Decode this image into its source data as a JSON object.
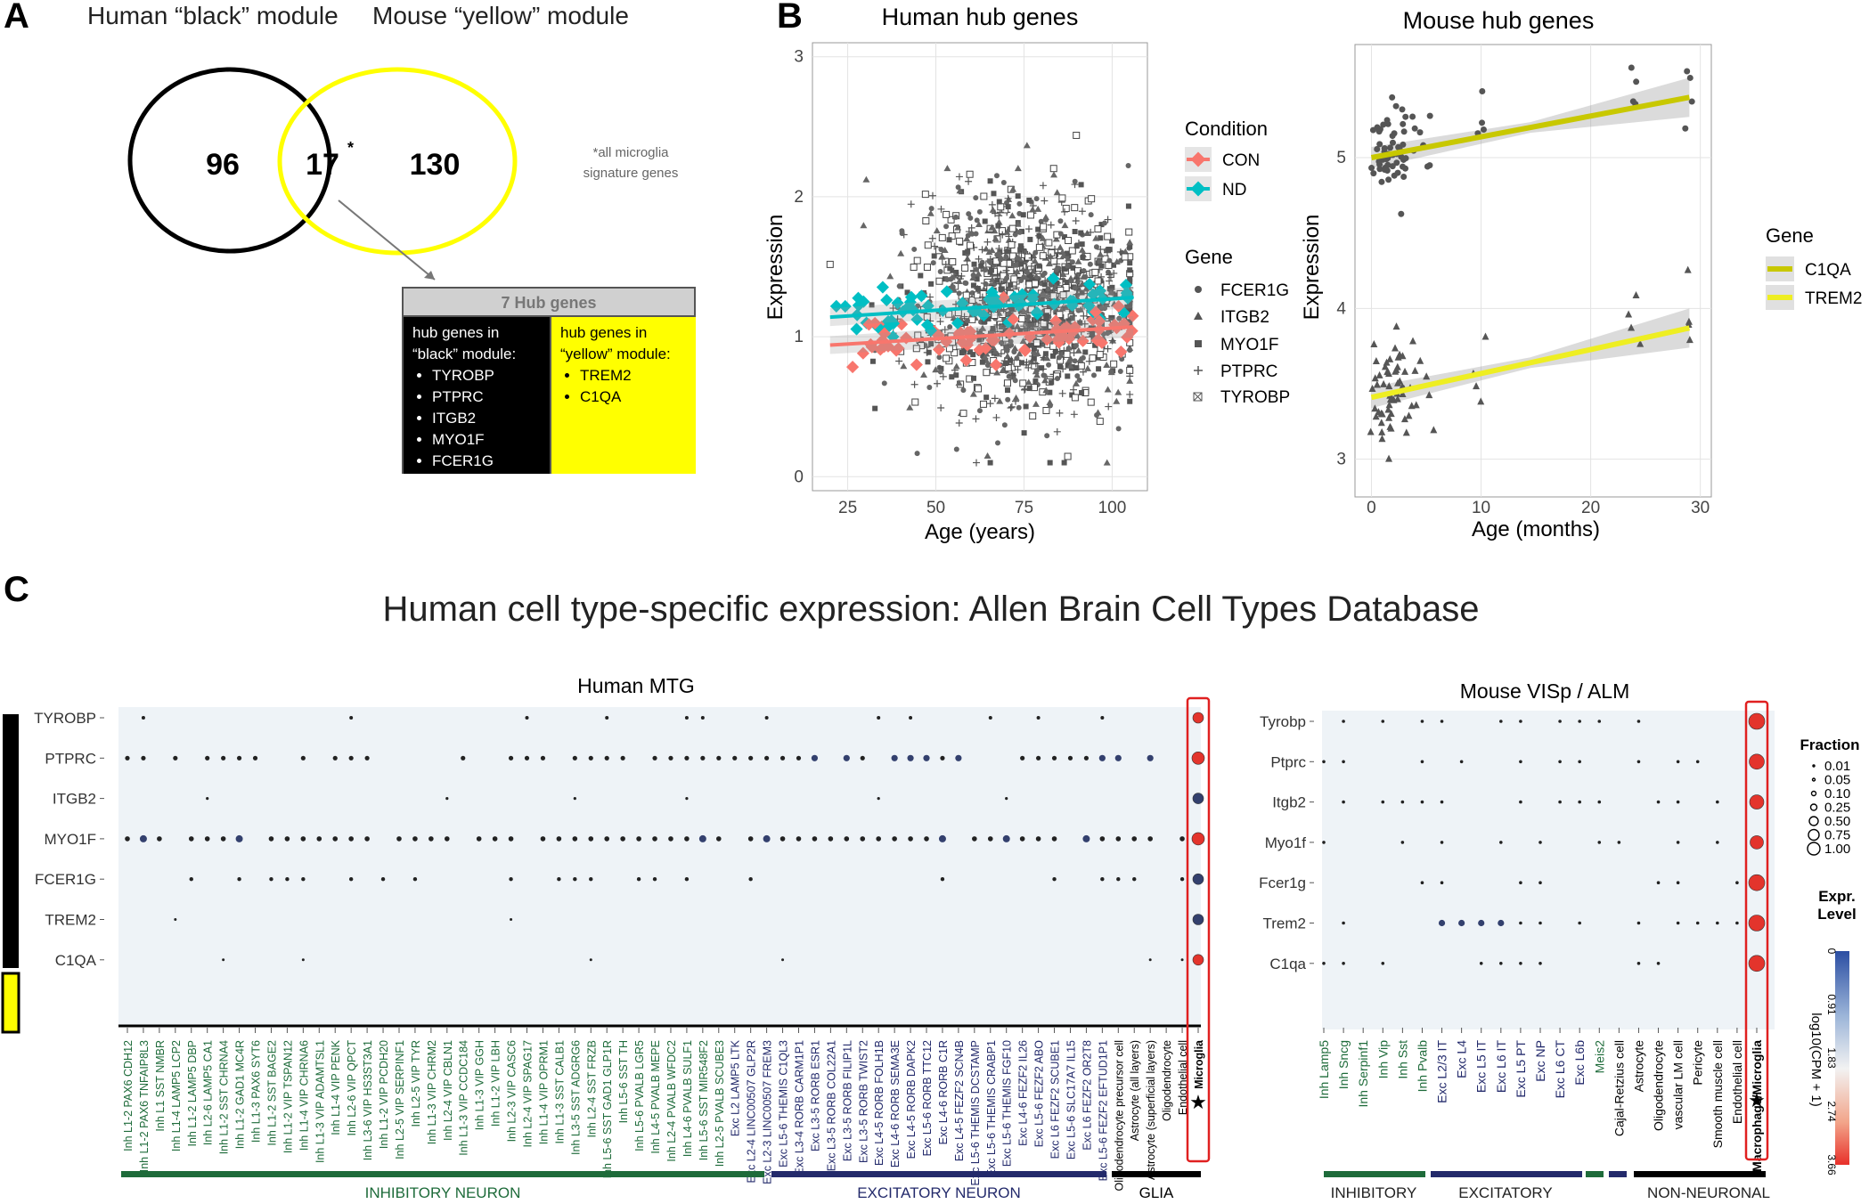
{
  "panel_labels": {
    "a": "A",
    "b": "B",
    "c": "C"
  },
  "venn": {
    "left_title": "Human “black” module",
    "right_title": "Mouse “yellow” module",
    "left_count": "96",
    "overlap_count": "17",
    "overlap_mark": "*",
    "right_count": "130",
    "footnote_line1": "*all microglia",
    "footnote_line2": "signature genes",
    "colors": {
      "left": "#000000",
      "right": "#ffff00"
    }
  },
  "hub_box": {
    "title": "7 Hub genes",
    "black_header_line1": "hub genes in",
    "black_header_line2": "“black” module:",
    "black_genes": [
      "TYROBP",
      "PTPRC",
      "ITGB2",
      "MYO1F",
      "FCER1G"
    ],
    "yellow_header_line1": "hub genes in",
    "yellow_header_line2": "“yellow” module:",
    "yellow_genes": [
      "TREM2",
      "C1QA"
    ]
  },
  "chart_data": [
    {
      "id": "human_hub",
      "type": "scatter",
      "title": "Human hub genes",
      "xlabel": "Age (years)",
      "ylabel": "Expression",
      "xlim": [
        15,
        110
      ],
      "ylim": [
        -0.1,
        3.1
      ],
      "xticks": [
        25,
        50,
        75,
        100
      ],
      "yticks": [
        0,
        1,
        2,
        3
      ],
      "legend_condition": {
        "title": "Condition",
        "items": [
          {
            "name": "CON",
            "color": "#f8766d"
          },
          {
            "name": "ND",
            "color": "#00bfc4"
          }
        ]
      },
      "legend_gene": {
        "title": "Gene",
        "items": [
          "FCER1G",
          "ITGB2",
          "MYO1F",
          "PTPRC",
          "TYROBP"
        ]
      },
      "trend_lines": [
        {
          "name": "CON",
          "x": [
            20,
            106
          ],
          "y": [
            0.94,
            1.07
          ],
          "color": "#f8766d"
        },
        {
          "name": "ND",
          "x": [
            20,
            106
          ],
          "y": [
            1.14,
            1.28
          ],
          "color": "#00bfc4"
        }
      ],
      "points_summary": "dense scatter of ~2000 points, Expression 0.1–2.6, Age 18–105"
    },
    {
      "id": "mouse_hub",
      "type": "scatter",
      "title": "Mouse hub genes",
      "xlabel": "Age (months)",
      "ylabel": "Expression",
      "xlim": [
        -1.5,
        31
      ],
      "ylim": [
        2.75,
        5.75
      ],
      "xticks": [
        0,
        10,
        20,
        30
      ],
      "yticks": [
        3,
        4,
        5
      ],
      "legend_gene": {
        "title": "Gene",
        "items": [
          {
            "name": "C1QA",
            "color": "#c8c800"
          },
          {
            "name": "TREM2",
            "color": "#eeee22"
          }
        ]
      },
      "trend_lines": [
        {
          "name": "C1QA",
          "x": [
            0,
            29
          ],
          "y": [
            5.0,
            5.4
          ],
          "color": "#c8c800"
        },
        {
          "name": "TREM2",
          "x": [
            0,
            29
          ],
          "y": [
            3.41,
            3.87
          ],
          "color": "#eeee22"
        }
      ]
    },
    {
      "id": "human_mtg",
      "type": "dotplot",
      "title": "Human MTG",
      "rows": [
        "TYROBP",
        "PTPRC",
        "ITGB2",
        "MYO1F",
        "FCER1G",
        "TREM2",
        "C1QA"
      ],
      "columns": [
        "Inh L1-2 PAX6 CDH12",
        "Inh L1-2 PAX6 TNFAIP8L3",
        "Inh L1 SST NMBR",
        "Inh L1-4 LAMP5 LCP2",
        "Inh L1-2 LAMP5 DBP",
        "Inh L2-6 LAMP5 CA1",
        "Inh L1-2 SST CHRNA4",
        "Inh L1-2 GAD1 MC4R",
        "Inh L1-3 PAX6 SYT6",
        "Inh L1-2 SST BAGE2",
        "Inh L1-2 VIP TSPAN12",
        "Inh L1-4 VIP CHRNA6",
        "Inh L1-3 VIP ADAMTSL1",
        "Inh L1-4 VIP PENK",
        "Inh L2-6 VIP QPCT",
        "Inh L3-6 VIP HS3ST3A1",
        "Inh L1-2 VIP PCDH20",
        "Inh L2-5 VIP SERPINF1",
        "Inh L2-5 VIP TYR",
        "Inh L1-3 VIP CHRM2",
        "Inh L2-4 VIP CBLN1",
        "Inh L1-3 VIP CCDC184",
        "Inh L1-3 VIP GGH",
        "Inh L1-2 VIP LBH",
        "Inh L2-3 VIP CASC6",
        "Inh L2-4 VIP SPAG17",
        "Inh L1-4 VIP OPRM1",
        "Inh L1-3 SST CALB1",
        "Inh L3-5 SST ADGRG6",
        "Inh L2-4 SST FRZB",
        "Inh L5-6 SST GAD1 GLP1R",
        "Inh L5-6 SST TH",
        "Inh L5-6 PVALB LGR5",
        "Inh L4-5 PVALB MEPE",
        "Inh L2-4 PVALB WFDC2",
        "Inh L4-6 PVALB SULF1",
        "Inh L5-6 SST MIR548F2",
        "Inh L2-5 PVALB SCUBE3",
        "Exc L2 LAMP5 LTK",
        "Exc L2-4 LINC00507 GLP2R",
        "Exc L2-3 LINC00507 FREM3",
        "Exc L5-6 THEMIS C1QL3",
        "Exc L3-4 RORB CARM1P1",
        "Exc L3-5 RORB ESR1",
        "Exc L3-5 RORB COL22A1",
        "Exc L3-5 RORB FILIP1L",
        "Exc L3-5 RORB TWIST2",
        "Exc L4-5 RORB FOLH1B",
        "Exc L4-6 RORB SEMA3E",
        "Exc L4-5 RORB DAPK2",
        "Exc L5-6 RORB TTC12",
        "Exc L4-6 RORB C1R",
        "Exc L4-5 FEZF2 SCN4B",
        "Exc L5-6 THEMIS DCSTAMP",
        "Exc L5-6 THEMIS CRABP1",
        "Exc L5-6 THEMIS FGF10",
        "Exc L4-6 FEZF2 IL26",
        "Exc L5-6 FEZF2 ABO",
        "Exc L6 FEZF2 SCUBE1",
        "Exc L5-6 SLC17A7 IL15",
        "Exc L6 FEZF2 OR2T8",
        "Exc L5-6 FEZF2 EFTUD1P1",
        "Oligodendrocyte precursor cell",
        "Astrocyte (all layers)",
        "Astrocyte (superficial layers)",
        "Oligodendrocyte",
        "Endothelial cell",
        "Microglia"
      ],
      "groups": [
        {
          "name": "INHIBITORY NEURON",
          "color": "#1e6b3a"
        },
        {
          "name": "EXCITATORY NEURON",
          "color": "#232a6b"
        },
        {
          "name": "GLIA",
          "color": "#000000"
        }
      ]
    },
    {
      "id": "mouse_visp",
      "type": "dotplot",
      "title": "Mouse VISp / ALM",
      "rows": [
        "Tyrobp",
        "Ptprc",
        "Itgb2",
        "Myo1f",
        "Fcer1g",
        "Trem2",
        "C1qa"
      ],
      "columns": [
        "Inh Lamp5",
        "Inh Sncg",
        "Inh Serpinf1",
        "Inh Vip",
        "Inh Sst",
        "Inh Pvalb",
        "Exc L2/3 IT",
        "Exc L4",
        "Exc L5 IT",
        "Exc L6 IT",
        "Exc L5 PT",
        "Exc NP",
        "Exc L6 CT",
        "Exc L6b",
        "Meis2",
        "Cajal-Retzius cell",
        "Astrocyte",
        "Oligodendrocyte",
        "vascular LM cell",
        "Pericyte",
        "Smooth muscle cell",
        "Endothelial cell",
        "Macrophage/Microglia"
      ],
      "groups": [
        {
          "name": "INHIBITORY",
          "color": "#1e6b3a"
        },
        {
          "name": "EXCITATORY",
          "color": "#232a6b"
        },
        {
          "name": "NON-NEURONAL",
          "color": "#000000"
        }
      ],
      "legend_fraction": {
        "title": "Fraction",
        "values": [
          "0.01",
          "0.05",
          "0.10",
          "0.25",
          "0.50",
          "0.75",
          "1.00"
        ]
      },
      "legend_expr": {
        "title_line1": "Expr.",
        "title_line2": "Level",
        "axis_label": "log10(CPM + 1)",
        "ticks": [
          "0",
          "0.91",
          "1.83",
          "2.74",
          "3.66"
        ]
      }
    }
  ],
  "panel_c_title": "Human cell type-specific expression: Allen Brain Cell Types Database",
  "star": "★"
}
